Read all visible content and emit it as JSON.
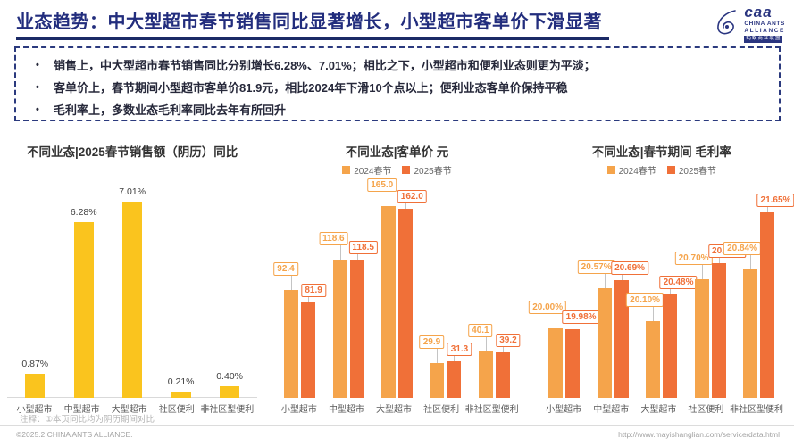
{
  "header": {
    "title": "业态趋势：中大型超市春节销售同比显著增长，小型超市客单价下滑显著",
    "logo": {
      "brand": "caa",
      "line1": "CHINA ANTS",
      "line2": "ALLIANCE",
      "line3": "蚂蚁商业联盟"
    }
  },
  "summary": {
    "bullets": [
      "销售上，中大型超市春节销售同比分别增长6.28%、7.01%；相比之下，小型超市和便利业态则更为平淡；",
      "客单价上，春节期间小型超市客单价81.9元，相比2024年下滑10个点以上；便利业态客单价保持平稳",
      "毛利率上，多数业态毛利率同比去年有所回升"
    ]
  },
  "colors": {
    "accent_navy": "#222d7d",
    "bar_yellow": "#FAC41E",
    "series_2024": "#F5A44B",
    "series_2025": "#F07038",
    "leader_gray": "#c4c4c4"
  },
  "chart_data": [
    {
      "id": "sales-yoy",
      "type": "bar",
      "title": "不同业态|2025春节销售额（阴历）同比",
      "categories": [
        "小型超市",
        "中型超市",
        "大型超市",
        "社区便利",
        "非社区型便利"
      ],
      "series": [
        {
          "name": "2025春节同比",
          "color": "#FAC41E",
          "values": [
            0.87,
            6.28,
            7.01,
            0.21,
            0.4
          ],
          "labels": [
            "0.87%",
            "6.28%",
            "7.01%",
            "0.21%",
            "0.40%"
          ]
        }
      ],
      "ylim": [
        0,
        7.5
      ],
      "legend": false,
      "label_style": "plain",
      "axis_line": true,
      "grid": false
    },
    {
      "id": "ticket-price",
      "type": "bar",
      "title": "不同业态|客单价 元",
      "categories": [
        "小型超市",
        "中型超市",
        "大型超市",
        "社区便利",
        "非社区型便利"
      ],
      "series": [
        {
          "name": "2024春节",
          "color": "#F5A44B",
          "values": [
            92.4,
            118.6,
            165.0,
            29.9,
            40.1
          ],
          "labels": [
            "92.4",
            "118.6",
            "165.0",
            "29.9",
            "40.1"
          ]
        },
        {
          "name": "2025春节",
          "color": "#F07038",
          "values": [
            81.9,
            118.5,
            162.0,
            31.3,
            39.2
          ],
          "labels": [
            "81.9",
            "118.5",
            "162.0",
            "31.3",
            "39.2"
          ]
        }
      ],
      "ylim": [
        0,
        180
      ],
      "legend": true,
      "legend_position": "top",
      "label_style": "boxed",
      "axis_line": false,
      "grid": false
    },
    {
      "id": "gross-margin",
      "type": "bar",
      "title": "不同业态|春节期间 毛利率",
      "categories": [
        "小型超市",
        "中型超市",
        "大型超市",
        "社区便利",
        "非社区型便利"
      ],
      "series": [
        {
          "name": "2024春节",
          "color": "#F5A44B",
          "values": [
            20.0,
            20.57,
            20.1,
            20.7,
            20.84
          ],
          "labels": [
            "20.00%",
            "20.57%",
            "20.10%",
            "20.70%",
            "20.84%"
          ]
        },
        {
          "name": "2025春节",
          "color": "#F07038",
          "values": [
            19.98,
            20.69,
            20.48,
            20.93,
            21.65
          ],
          "labels": [
            "19.98%",
            "20.69%",
            "20.48%",
            "20.93%",
            "21.65%"
          ]
        }
      ],
      "ylim": [
        19.0,
        22.0
      ],
      "legend": true,
      "legend_position": "top",
      "label_style": "boxed",
      "axis_line": false,
      "grid": false
    }
  ],
  "note": "注释：①本页同比均为阴历期间对比",
  "footer": {
    "left": "©2025.2 CHINA ANTS ALLIANCE.",
    "right": "http://www.mayishanglian.com/service/data.html"
  }
}
